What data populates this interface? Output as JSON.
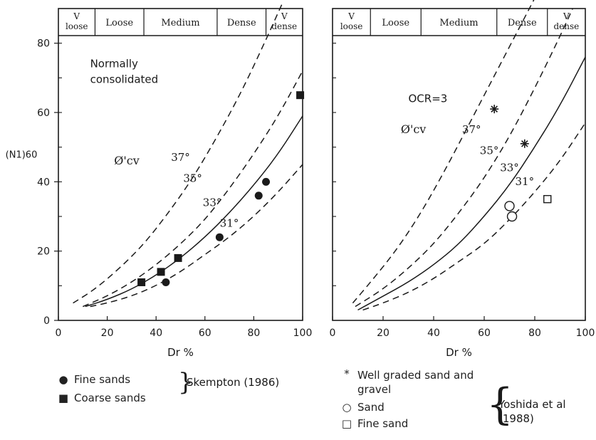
{
  "chart_data": [
    {
      "type": "line",
      "panel": "left",
      "ylabel": "(N1)60",
      "xlabel": "Dr %",
      "xlim": [
        0,
        100
      ],
      "ylim": [
        0,
        90
      ],
      "xticks": [
        "0",
        "20",
        "40",
        "60",
        "80",
        "100"
      ],
      "yticks": [
        "0",
        "20",
        "40",
        "60",
        "80"
      ],
      "annotation": [
        "Normally",
        "consolidated"
      ],
      "phi_label": "Ø'cv",
      "density_bands": [
        "V loose",
        "Loose",
        "Medium",
        "Dense",
        "V dense"
      ],
      "band_edges": [
        0,
        15,
        35,
        65,
        85,
        100
      ],
      "series": [
        {
          "name": "37°",
          "style": "dashed",
          "x": [
            6,
            15,
            25,
            35,
            45,
            55,
            65,
            75,
            85,
            92
          ],
          "y": [
            5,
            9,
            15,
            22,
            31,
            41,
            53,
            66,
            81,
            92
          ]
        },
        {
          "name": "35°",
          "style": "dashed",
          "x": [
            10,
            20,
            30,
            40,
            50,
            60,
            70,
            80,
            90,
            100
          ],
          "y": [
            4,
            7,
            11,
            16,
            22,
            29,
            38,
            48,
            59,
            72
          ]
        },
        {
          "name": "33°",
          "style": "solid",
          "x": [
            11,
            20,
            30,
            40,
            50,
            60,
            70,
            80,
            90,
            100
          ],
          "y": [
            4,
            6,
            9,
            13,
            18,
            24,
            31,
            39,
            48,
            59
          ]
        },
        {
          "name": "31°",
          "style": "dashed",
          "x": [
            13,
            20,
            30,
            40,
            50,
            60,
            70,
            80,
            90,
            100
          ],
          "y": [
            4,
            5,
            7,
            10,
            14,
            19,
            24,
            30,
            37,
            45
          ]
        }
      ],
      "curve_labels": [
        {
          "text": "37°",
          "x": 50,
          "y": 46
        },
        {
          "text": "35°",
          "x": 55,
          "y": 40
        },
        {
          "text": "33°",
          "x": 63,
          "y": 33
        },
        {
          "text": "31°",
          "x": 70,
          "y": 27
        }
      ],
      "points": [
        {
          "group": "Fine sands",
          "marker": "circle",
          "x": 44,
          "y": 11
        },
        {
          "group": "Fine sands",
          "marker": "circle",
          "x": 66,
          "y": 24
        },
        {
          "group": "Fine sands",
          "marker": "circle",
          "x": 82,
          "y": 36
        },
        {
          "group": "Fine sands",
          "marker": "circle",
          "x": 85,
          "y": 40
        },
        {
          "group": "Coarse sands",
          "marker": "square",
          "x": 34,
          "y": 11
        },
        {
          "group": "Coarse sands",
          "marker": "square",
          "x": 42,
          "y": 14
        },
        {
          "group": "Coarse sands",
          "marker": "square",
          "x": 49,
          "y": 18
        },
        {
          "group": "Coarse sands",
          "marker": "square",
          "x": 99,
          "y": 65
        }
      ]
    },
    {
      "type": "line",
      "panel": "right",
      "xlabel": "Dr %",
      "xlim": [
        0,
        100
      ],
      "ylim": [
        0,
        90
      ],
      "xticks": [
        "0",
        "20",
        "40",
        "60",
        "80",
        "100"
      ],
      "annotation": [
        "OCR=3"
      ],
      "phi_label": "Ø'cv",
      "density_bands": [
        "V loose",
        "Loose",
        "Medium",
        "Dense",
        "V dense"
      ],
      "band_edges": [
        0,
        15,
        35,
        65,
        85,
        100
      ],
      "series": [
        {
          "name": "37°",
          "style": "dashed",
          "x": [
            8,
            15,
            25,
            35,
            45,
            55,
            65,
            75,
            80
          ],
          "y": [
            5,
            11,
            20,
            31,
            44,
            58,
            72,
            86,
            93
          ]
        },
        {
          "name": "35°",
          "style": "dashed",
          "x": [
            9,
            20,
            30,
            40,
            50,
            60,
            70,
            80,
            90,
            95
          ],
          "y": [
            4,
            9,
            15,
            22,
            31,
            41,
            53,
            67,
            82,
            90
          ]
        },
        {
          "name": "33°",
          "style": "solid",
          "x": [
            10,
            20,
            30,
            40,
            50,
            60,
            70,
            80,
            90,
            100
          ],
          "y": [
            3,
            7,
            11,
            16,
            22,
            30,
            39,
            50,
            62,
            76
          ]
        },
        {
          "name": "31°",
          "style": "dashed",
          "x": [
            12,
            20,
            30,
            40,
            50,
            60,
            70,
            80,
            90,
            100
          ],
          "y": [
            3,
            5,
            8,
            12,
            17,
            22,
            29,
            37,
            46,
            57
          ]
        }
      ],
      "curve_labels": [
        {
          "text": "37°",
          "x": 55,
          "y": 54
        },
        {
          "text": "35°",
          "x": 62,
          "y": 48
        },
        {
          "text": "33°",
          "x": 70,
          "y": 43
        },
        {
          "text": "31°",
          "x": 76,
          "y": 39
        }
      ],
      "points": [
        {
          "group": "Well graded sand and gravel",
          "marker": "star",
          "x": 64,
          "y": 61
        },
        {
          "group": "Well graded sand and gravel",
          "marker": "star",
          "x": 76,
          "y": 51
        },
        {
          "group": "Sand",
          "marker": "open-circle",
          "x": 70,
          "y": 33
        },
        {
          "group": "Sand",
          "marker": "open-circle",
          "x": 71,
          "y": 30
        },
        {
          "group": "Fine sand",
          "marker": "open-square",
          "x": 85,
          "y": 35
        }
      ]
    }
  ],
  "legend_left": {
    "items": [
      {
        "marker": "●",
        "label": "Fine sands"
      },
      {
        "marker": "■",
        "label": "Coarse sands"
      }
    ],
    "reference": "Skempton (1986)"
  },
  "legend_right": {
    "items": [
      {
        "marker": "*",
        "label": "Well graded sand and gravel"
      },
      {
        "marker": "○",
        "label": "Sand"
      },
      {
        "marker": "□",
        "label": "Fine sand"
      }
    ],
    "reference": [
      "Yoshida et al",
      "(1988)"
    ]
  }
}
